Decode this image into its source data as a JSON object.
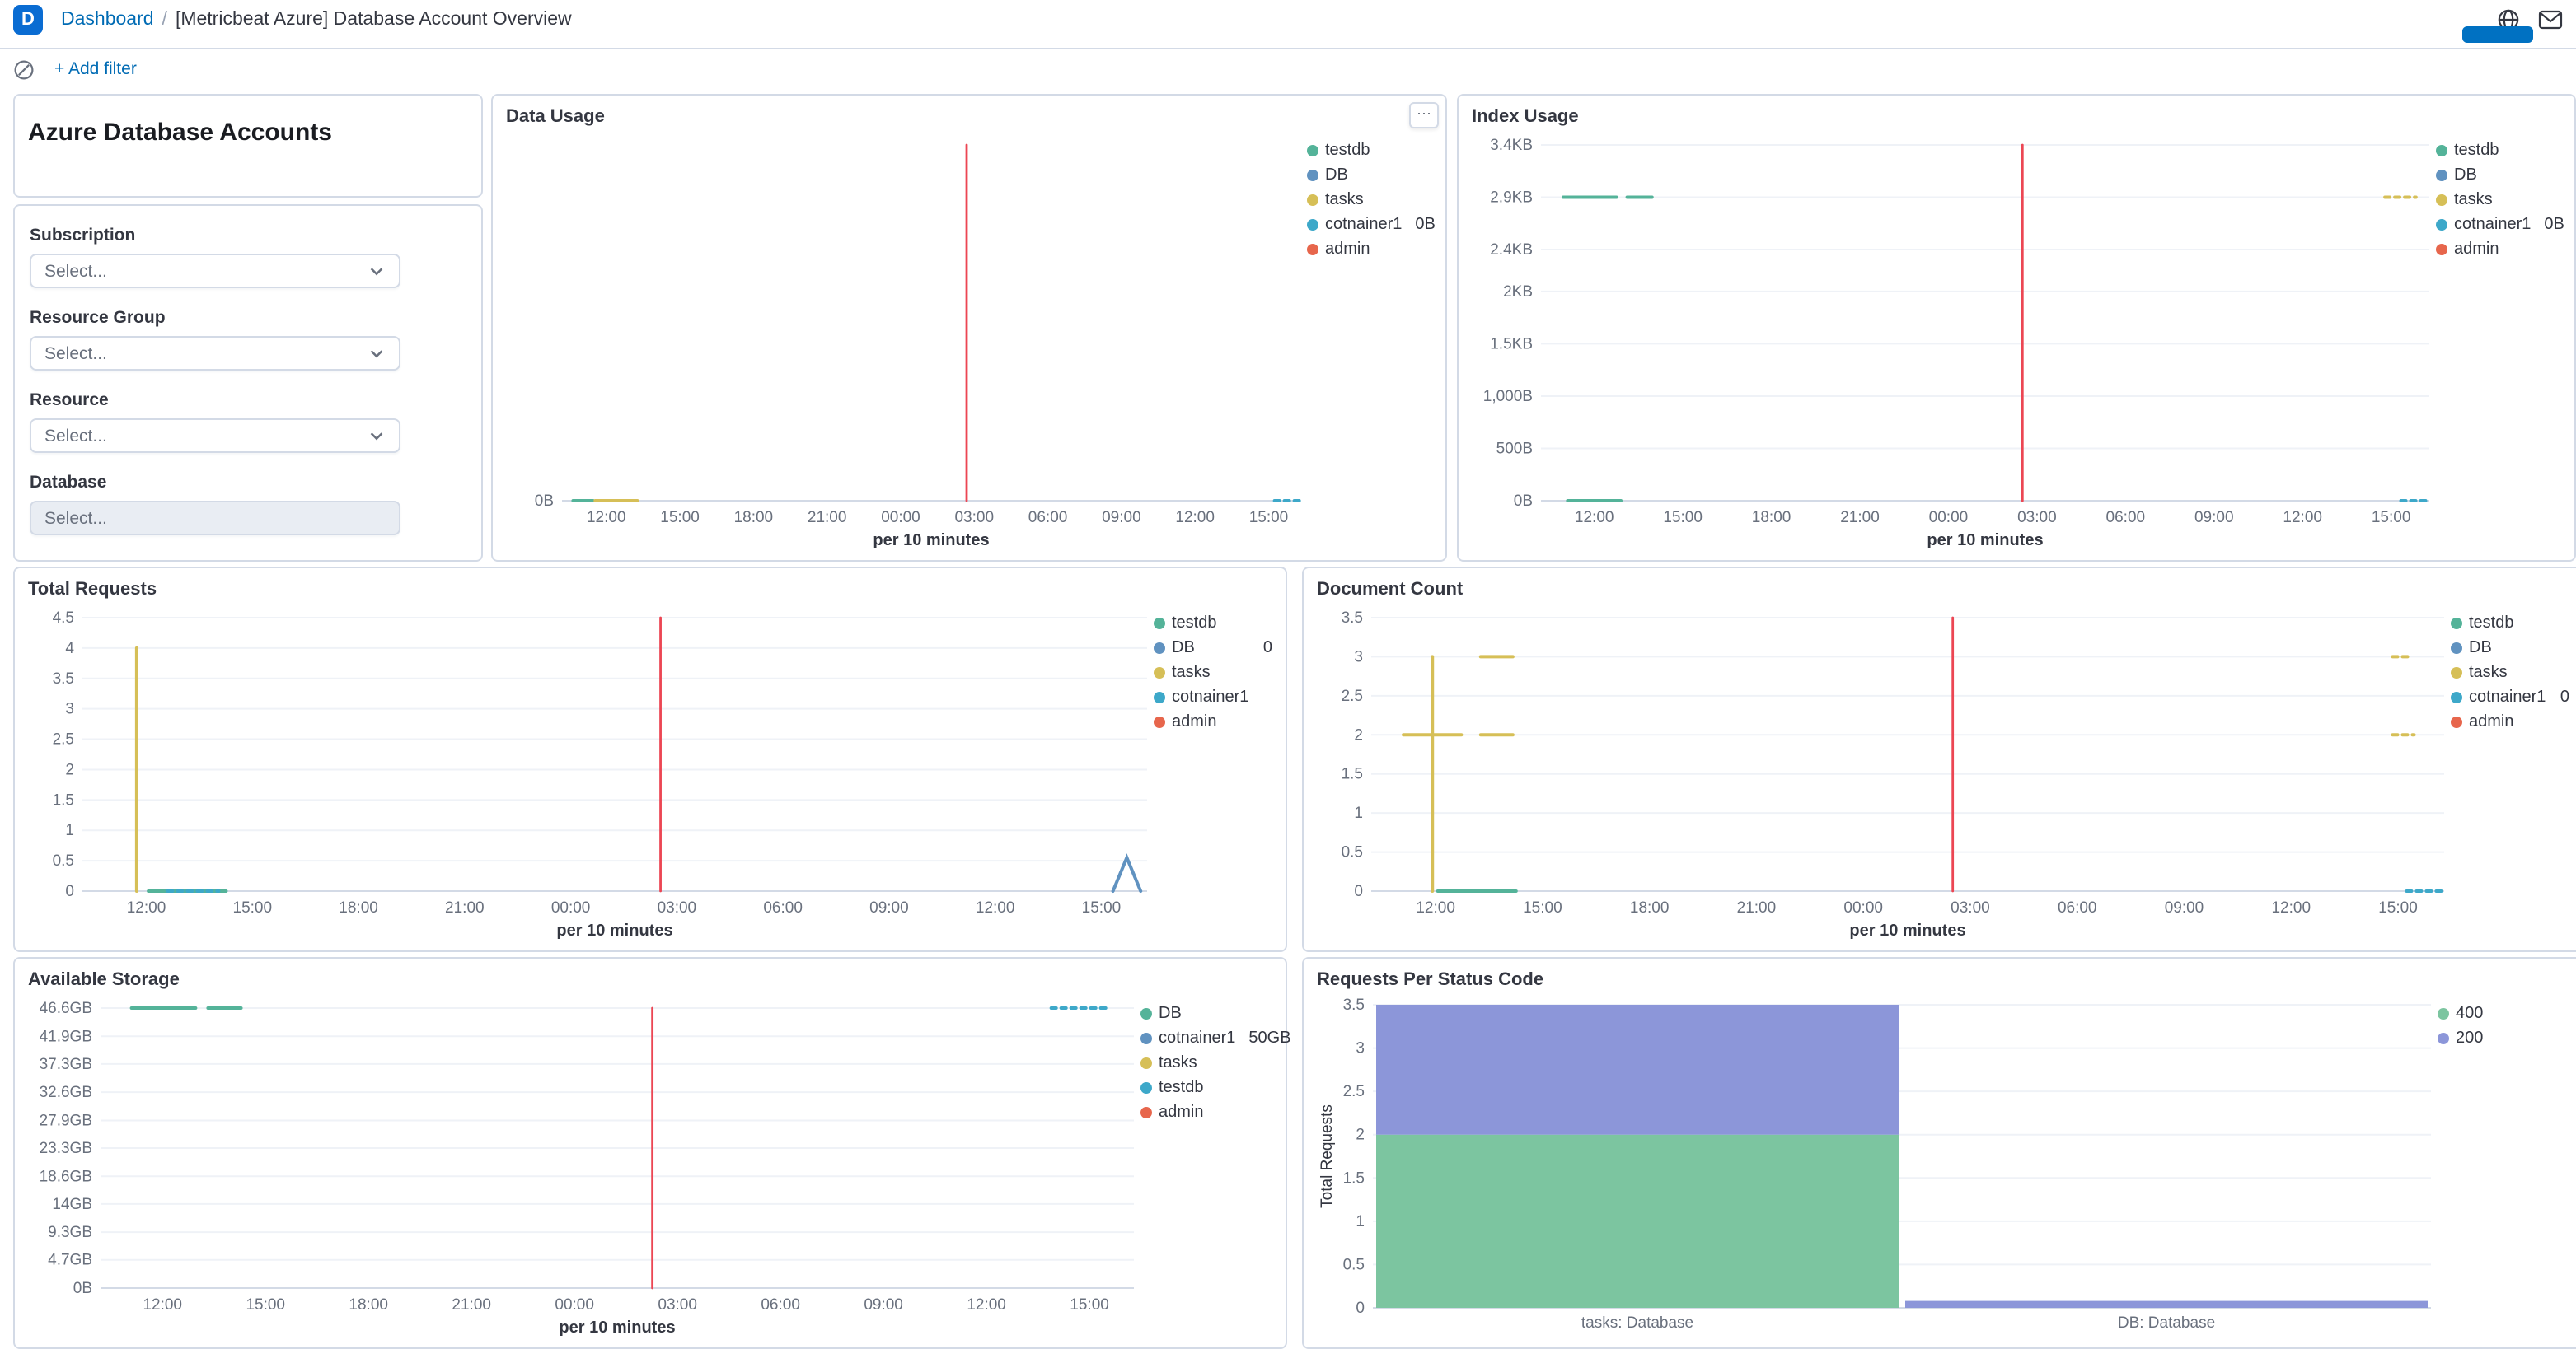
{
  "header": {
    "space_initial": "D",
    "breadcrumbs": {
      "root": "Dashboard",
      "separator": "/",
      "current": "[Metricbeat Azure] Database Account Overview"
    }
  },
  "toolbar": {
    "add_filter_label": "+ Add filter"
  },
  "icons": {
    "panel_options": "⋯"
  },
  "left_panels": {
    "markdown_title": "Azure Database Accounts",
    "controls": {
      "fields": [
        {
          "label": "Subscription",
          "placeholder": "Select..."
        },
        {
          "label": "Resource Group",
          "placeholder": "Select..."
        },
        {
          "label": "Resource",
          "placeholder": "Select..."
        },
        {
          "label": "Database",
          "placeholder": "Select..."
        }
      ]
    }
  },
  "chart_data": [
    {
      "type": "line",
      "title": "Data Usage",
      "x_caption": "per 10 minutes",
      "x_ticks": [
        "12:00",
        "15:00",
        "18:00",
        "21:00",
        "00:00",
        "03:00",
        "06:00",
        "09:00",
        "12:00",
        "15:00"
      ],
      "y_max": 1,
      "y_ticks": [
        {
          "v": 0,
          "label": "0B"
        }
      ],
      "margin_left": 34,
      "legend": [
        {
          "label": "testdb",
          "color": "#54B399"
        },
        {
          "label": "DB",
          "color": "#6092C0"
        },
        {
          "label": "tasks",
          "color": "#D6BF57"
        },
        {
          "label": "cotnainer1",
          "color": "#3DA8C9",
          "value": "0B"
        },
        {
          "label": "admin",
          "color": "#E7664C"
        }
      ],
      "series": [
        {
          "name": "testdb",
          "color": "#54B399",
          "segments": [
            {
              "x1": 0.015,
              "x2": 0.042,
              "y": 0
            }
          ]
        },
        {
          "name": "tasks",
          "color": "#D6BF57",
          "segments": [
            {
              "x1": 0.045,
              "x2": 0.102,
              "y": 0
            }
          ]
        },
        {
          "name": "cotnainer1",
          "color": "#3DA8C9",
          "dash": true,
          "segments": [
            {
              "x1": 0.965,
              "x2": 1,
              "y": 0
            }
          ]
        },
        {
          "name": "admin",
          "color": "#EC4653",
          "width": 1.4,
          "segments": [
            {
              "x": 0.548,
              "y1": 0,
              "y2": 1
            }
          ]
        }
      ]
    },
    {
      "type": "line",
      "title": "Index Usage",
      "x_caption": "per 10 minutes",
      "x_ticks": [
        "12:00",
        "15:00",
        "18:00",
        "21:00",
        "00:00",
        "03:00",
        "06:00",
        "09:00",
        "12:00",
        "15:00"
      ],
      "y_max": 3400,
      "y_ticks": [
        {
          "v": 0,
          "label": "0B"
        },
        {
          "v": 500,
          "label": "500B"
        },
        {
          "v": 1000,
          "label": "1,000B"
        },
        {
          "v": 1500,
          "label": "1.5KB"
        },
        {
          "v": 2000,
          "label": "2KB"
        },
        {
          "v": 2400,
          "label": "2.4KB"
        },
        {
          "v": 2900,
          "label": "2.9KB"
        },
        {
          "v": 3400,
          "label": "3.4KB"
        }
      ],
      "margin_left": 42,
      "legend": [
        {
          "label": "testdb",
          "color": "#54B399"
        },
        {
          "label": "DB",
          "color": "#6092C0"
        },
        {
          "label": "tasks",
          "color": "#D6BF57"
        },
        {
          "label": "cotnainer1",
          "color": "#3DA8C9",
          "value": "0B"
        },
        {
          "label": "admin",
          "color": "#E7664C"
        }
      ],
      "series": [
        {
          "name": "testdb",
          "color": "#54B399",
          "segments": [
            {
              "x1": 0.025,
              "x2": 0.085,
              "y": 2900
            },
            {
              "x1": 0.097,
              "x2": 0.125,
              "y": 2900
            },
            {
              "x1": 0.03,
              "x2": 0.09,
              "y": 0
            }
          ]
        },
        {
          "name": "tasks",
          "color": "#D6BF57",
          "dash": true,
          "segments": [
            {
              "x1": 0.95,
              "x2": 0.985,
              "y": 2900
            }
          ]
        },
        {
          "name": "cotnainer1",
          "color": "#3DA8C9",
          "dash": true,
          "segments": [
            {
              "x1": 0.968,
              "x2": 1,
              "y": 0
            }
          ]
        },
        {
          "name": "admin",
          "color": "#EC4653",
          "width": 1.4,
          "segments": [
            {
              "x": 0.542,
              "y1": 0,
              "y2": 3400
            }
          ]
        }
      ]
    },
    {
      "type": "line",
      "title": "Total Requests",
      "x_caption": "per 10 minutes",
      "x_ticks": [
        "12:00",
        "15:00",
        "18:00",
        "21:00",
        "00:00",
        "03:00",
        "06:00",
        "09:00",
        "12:00",
        "15:00"
      ],
      "y_max": 4.5,
      "y_ticks": [
        {
          "v": 0,
          "label": "0"
        },
        {
          "v": 0.5,
          "label": "0.5"
        },
        {
          "v": 1,
          "label": "1"
        },
        {
          "v": 1.5,
          "label": "1.5"
        },
        {
          "v": 2,
          "label": "2"
        },
        {
          "v": 2.5,
          "label": "2.5"
        },
        {
          "v": 3,
          "label": "3"
        },
        {
          "v": 3.5,
          "label": "3.5"
        },
        {
          "v": 4,
          "label": "4"
        },
        {
          "v": 4.5,
          "label": "4.5"
        }
      ],
      "margin_left": 33,
      "legend": [
        {
          "label": "testdb",
          "color": "#54B399"
        },
        {
          "label": "DB",
          "color": "#6092C0",
          "value": "0"
        },
        {
          "label": "tasks",
          "color": "#D6BF57"
        },
        {
          "label": "cotnainer1",
          "color": "#3DA8C9"
        },
        {
          "label": "admin",
          "color": "#E7664C"
        }
      ],
      "series": [
        {
          "name": "tasks",
          "color": "#D6BF57",
          "segments": [
            {
              "x": 0.051,
              "y1": 0,
              "y2": 4
            }
          ]
        },
        {
          "name": "testdb",
          "color": "#54B399",
          "segments": [
            {
              "x1": 0.062,
              "x2": 0.135,
              "y": 0
            }
          ]
        },
        {
          "name": "cotnainer1",
          "color": "#3DA8C9",
          "dash": true,
          "segments": [
            {
              "x1": 0.08,
              "x2": 0.128,
              "y": 0
            }
          ]
        },
        {
          "name": "DB",
          "color": "#6092C0",
          "segments": [
            {
              "pts": [
                [
                  0.968,
                  0
                ],
                [
                  0.981,
                  0.55
                ],
                [
                  0.994,
                  0
                ]
              ]
            }
          ]
        },
        {
          "name": "admin",
          "color": "#EC4653",
          "width": 1.4,
          "segments": [
            {
              "x": 0.543,
              "y1": 0,
              "y2": 4.5
            }
          ]
        }
      ]
    },
    {
      "type": "line",
      "title": "Document Count",
      "x_caption": "per 10 minutes",
      "x_ticks": [
        "12:00",
        "15:00",
        "18:00",
        "21:00",
        "00:00",
        "03:00",
        "06:00",
        "09:00",
        "12:00",
        "15:00"
      ],
      "y_max": 3.5,
      "y_ticks": [
        {
          "v": 0,
          "label": "0"
        },
        {
          "v": 0.5,
          "label": "0.5"
        },
        {
          "v": 1,
          "label": "1"
        },
        {
          "v": 1.5,
          "label": "1.5"
        },
        {
          "v": 2,
          "label": "2"
        },
        {
          "v": 2.5,
          "label": "2.5"
        },
        {
          "v": 3,
          "label": "3"
        },
        {
          "v": 3.5,
          "label": "3.5"
        }
      ],
      "margin_left": 33,
      "legend": [
        {
          "label": "testdb",
          "color": "#54B399"
        },
        {
          "label": "DB",
          "color": "#6092C0"
        },
        {
          "label": "tasks",
          "color": "#D6BF57"
        },
        {
          "label": "cotnainer1",
          "color": "#3DA8C9",
          "value": "0"
        },
        {
          "label": "admin",
          "color": "#E7664C"
        }
      ],
      "series": [
        {
          "name": "tasks",
          "color": "#D6BF57",
          "segments": [
            {
              "x": 0.057,
              "y1": 0,
              "y2": 3
            },
            {
              "x1": 0.03,
              "x2": 0.084,
              "y": 2
            },
            {
              "x1": 0.102,
              "x2": 0.132,
              "y": 3
            },
            {
              "x1": 0.102,
              "x2": 0.132,
              "y": 2
            }
          ]
        },
        {
          "name": "tasks",
          "color": "#D6BF57",
          "dash": true,
          "segments": [
            {
              "x1": 0.952,
              "x2": 0.972,
              "y": 2
            },
            {
              "x1": 0.952,
              "x2": 0.966,
              "y": 3
            }
          ]
        },
        {
          "name": "testdb",
          "color": "#54B399",
          "segments": [
            {
              "x1": 0.062,
              "x2": 0.135,
              "y": 0
            }
          ]
        },
        {
          "name": "cotnainer1",
          "color": "#3DA8C9",
          "dash": true,
          "segments": [
            {
              "x1": 0.965,
              "x2": 1,
              "y": 0
            }
          ]
        },
        {
          "name": "admin",
          "color": "#EC4653",
          "width": 1.4,
          "segments": [
            {
              "x": 0.542,
              "y1": 0,
              "y2": 3.5
            }
          ]
        }
      ]
    },
    {
      "type": "line",
      "title": "Available Storage",
      "x_caption": "per 10 minutes",
      "x_ticks": [
        "12:00",
        "15:00",
        "18:00",
        "21:00",
        "00:00",
        "03:00",
        "06:00",
        "09:00",
        "12:00",
        "15:00"
      ],
      "y_max": 46.6,
      "y_ticks": [
        {
          "v": 0,
          "label": "0B"
        },
        {
          "v": 4.7,
          "label": "4.7GB"
        },
        {
          "v": 9.3,
          "label": "9.3GB"
        },
        {
          "v": 14,
          "label": "14GB"
        },
        {
          "v": 18.6,
          "label": "18.6GB"
        },
        {
          "v": 23.3,
          "label": "23.3GB"
        },
        {
          "v": 27.9,
          "label": "27.9GB"
        },
        {
          "v": 32.6,
          "label": "32.6GB"
        },
        {
          "v": 37.3,
          "label": "37.3GB"
        },
        {
          "v": 41.9,
          "label": "41.9GB"
        },
        {
          "v": 46.6,
          "label": "46.6GB"
        }
      ],
      "margin_left": 44,
      "legend": [
        {
          "label": "DB",
          "color": "#54B399"
        },
        {
          "label": "cotnainer1",
          "color": "#6092C0",
          "value": "50GB"
        },
        {
          "label": "tasks",
          "color": "#D6BF57"
        },
        {
          "label": "testdb",
          "color": "#3DA8C9"
        },
        {
          "label": "admin",
          "color": "#E7664C"
        }
      ],
      "series": [
        {
          "name": "DB",
          "color": "#54B399",
          "segments": [
            {
              "x1": 0.03,
              "x2": 0.092,
              "y": 46.6
            },
            {
              "x1": 0.104,
              "x2": 0.136,
              "y": 46.6
            }
          ]
        },
        {
          "name": "testdb",
          "color": "#3DA8C9",
          "dash": true,
          "segments": [
            {
              "x1": 0.92,
              "x2": 0.975,
              "y": 46.6
            }
          ]
        },
        {
          "name": "admin",
          "color": "#EC4653",
          "width": 1.4,
          "segments": [
            {
              "x": 0.534,
              "y1": 0,
              "y2": 46.6
            }
          ]
        }
      ]
    },
    {
      "type": "bar",
      "title": "Requests Per Status Code",
      "ylabel": "Total Requests",
      "y_max": 3.5,
      "y_ticks": [
        0,
        0.5,
        1,
        1.5,
        2,
        2.5,
        3,
        3.5
      ],
      "legend": [
        {
          "label": "400",
          "color": "#7CC5A0"
        },
        {
          "label": "200",
          "color": "#8C96D9"
        }
      ],
      "categories": [
        {
          "label": "tasks: Database",
          "stacks": [
            {
              "name": "400",
              "value": 2
            },
            {
              "name": "200",
              "value": 1.5
            }
          ]
        },
        {
          "label": "DB: Database",
          "stacks": [
            {
              "name": "200",
              "value": 0.08
            }
          ]
        }
      ]
    }
  ]
}
